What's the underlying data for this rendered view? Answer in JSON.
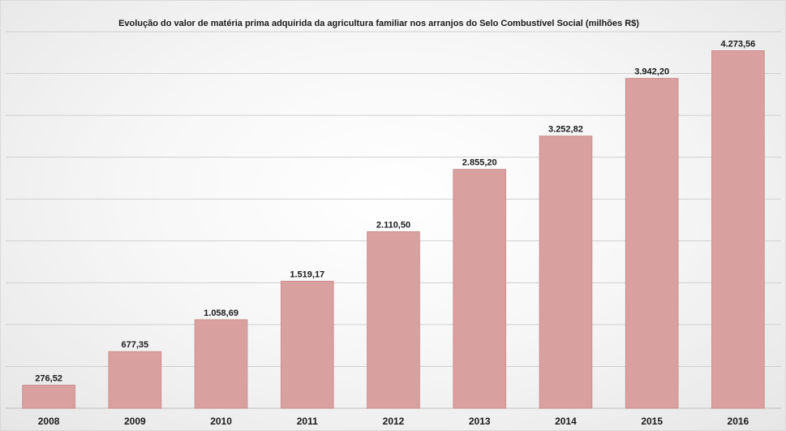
{
  "chart_data": {
    "type": "bar",
    "title": "Evolução do valor de matéria prima adquirida da agricultura familiar nos arranjos do Selo Combustível Social (milhões R$)",
    "categories": [
      "2008",
      "2009",
      "2010",
      "2011",
      "2012",
      "2013",
      "2014",
      "2015",
      "2016"
    ],
    "values": [
      276.52,
      677.35,
      1058.69,
      1519.17,
      2110.5,
      2855.2,
      3252.82,
      3942.2,
      4273.56
    ],
    "data_labels": [
      "276,52",
      "677,35",
      "1.058,69",
      "1.519,17",
      "2.110,50",
      "2.855,20",
      "3.252,82",
      "3.942,20",
      "4.273,56"
    ],
    "xlabel": "",
    "ylabel": "",
    "ylim": [
      0,
      4500
    ],
    "grid": true,
    "legend": "none",
    "colors": {
      "bar_fill": "#d9a0a0",
      "bar_stroke": "#c98888",
      "grid": "#d0d0d0",
      "text": "#1a1a1a"
    }
  }
}
